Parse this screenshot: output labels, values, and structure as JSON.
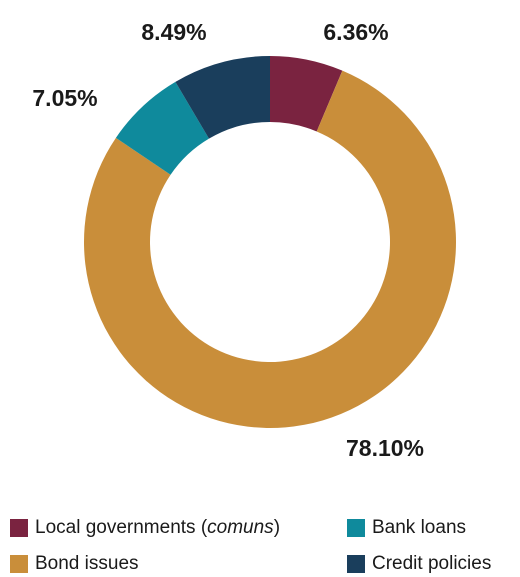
{
  "chart_data": {
    "type": "pie",
    "style": "donut",
    "title": "",
    "slices": [
      {
        "name": "Local governments (comuns)",
        "value": 6.36,
        "label": "6.36%",
        "color": "#7a2340"
      },
      {
        "name": "Bond issues",
        "value": 78.1,
        "label": "78.10%",
        "color": "#c98e3a"
      },
      {
        "name": "Bank loans",
        "value": 7.05,
        "label": "7.05%",
        "color": "#0f8a9c"
      },
      {
        "name": "Credit policies",
        "value": 8.49,
        "label": "8.49%",
        "color": "#1a3e5c"
      }
    ],
    "legend": {
      "placement": "bottom",
      "items": [
        {
          "prefix": "Local governments (",
          "italic": "comuns",
          "suffix": ")",
          "color": "#7a2340"
        },
        {
          "prefix": "Bank loans",
          "italic": "",
          "suffix": "",
          "color": "#0f8a9c"
        },
        {
          "prefix": "Bond issues",
          "italic": "",
          "suffix": "",
          "color": "#c98e3a"
        },
        {
          "prefix": "Credit policies",
          "italic": "",
          "suffix": "",
          "color": "#1a3e5c"
        }
      ]
    }
  }
}
